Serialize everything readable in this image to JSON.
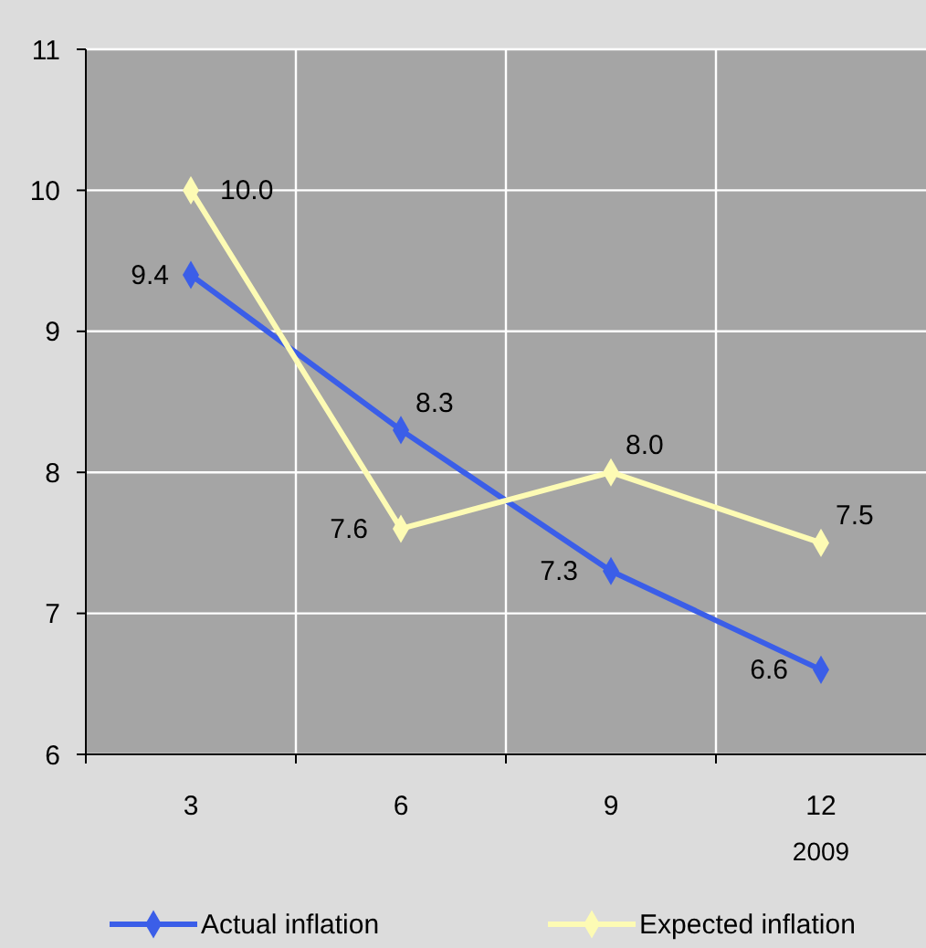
{
  "chart_data": {
    "type": "line",
    "categories": [
      "3",
      "6",
      "9",
      "12"
    ],
    "series": [
      {
        "name": "Actual inflation",
        "color": "#3b5ee8",
        "values": [
          9.4,
          8.3,
          7.3,
          6.6
        ],
        "value_labels": [
          "9.4",
          "8.3",
          "7.3",
          "6.6"
        ]
      },
      {
        "name": "Expected inflation",
        "color": "#fdfbb4",
        "values": [
          10.0,
          7.6,
          8.0,
          7.5
        ],
        "value_labels": [
          "10.0",
          "7.6",
          "8.0",
          "7.5"
        ]
      }
    ],
    "ylim": [
      6,
      11
    ],
    "yticks": [
      6,
      7,
      8,
      9,
      10,
      11
    ],
    "grid": true,
    "legend": "bottom",
    "marker": "diamond",
    "line_style": "solid",
    "annotations": [
      "2009"
    ]
  }
}
